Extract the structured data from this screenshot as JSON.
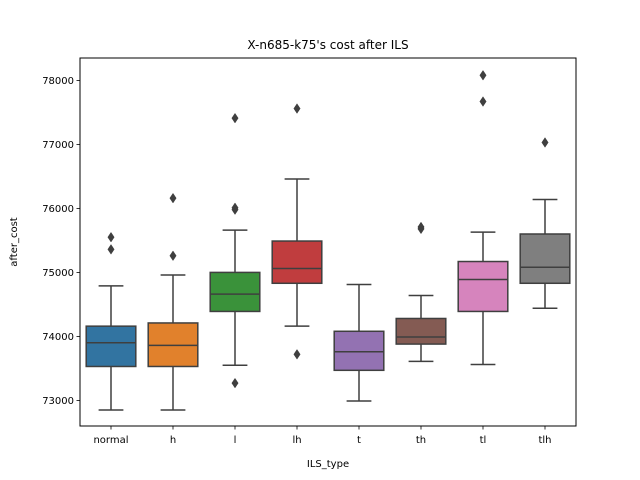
{
  "chart_data": {
    "type": "box",
    "title": "X-n685-k75's cost after ILS",
    "xlabel": "ILS_type",
    "ylabel": "after_cost",
    "categories": [
      "normal",
      "h",
      "l",
      "lh",
      "t",
      "th",
      "tl",
      "tlh"
    ],
    "ylim": [
      72600,
      78350
    ],
    "yticks": [
      73000,
      74000,
      75000,
      76000,
      77000,
      78000
    ],
    "ytick_labels": [
      "73000",
      "74000",
      "75000",
      "76000",
      "77000",
      "78000"
    ],
    "grid": false,
    "colors": {
      "normal": "#3274a1",
      "h": "#e1812c",
      "l": "#3a923a",
      "lh": "#c03d3e",
      "t": "#9372b2",
      "th": "#845b53",
      "tl": "#d684bd",
      "tlh": "#7f7f7f",
      "line": "#3f3f3f"
    },
    "boxes": [
      {
        "category": "normal",
        "whisker_low": 72850,
        "q1": 73530,
        "median": 73900,
        "q3": 74160,
        "whisker_high": 74790,
        "outliers": [
          75360,
          75550
        ]
      },
      {
        "category": "h",
        "whisker_low": 72850,
        "q1": 73530,
        "median": 73860,
        "q3": 74210,
        "whisker_high": 74960,
        "outliers": [
          75260,
          76160
        ]
      },
      {
        "category": "l",
        "whisker_low": 73550,
        "q1": 74390,
        "median": 74660,
        "q3": 75000,
        "whisker_high": 75660,
        "outliers": [
          73270,
          75980,
          76010,
          77410
        ]
      },
      {
        "category": "lh",
        "whisker_low": 74160,
        "q1": 74830,
        "median": 75060,
        "q3": 75490,
        "whisker_high": 76460,
        "outliers": [
          73720,
          77560
        ]
      },
      {
        "category": "t",
        "whisker_low": 72990,
        "q1": 73470,
        "median": 73760,
        "q3": 74080,
        "whisker_high": 74810,
        "outliers": []
      },
      {
        "category": "th",
        "whisker_low": 73610,
        "q1": 73880,
        "median": 73990,
        "q3": 74280,
        "whisker_high": 74640,
        "outliers": [
          75680,
          75710
        ]
      },
      {
        "category": "tl",
        "whisker_low": 73560,
        "q1": 74390,
        "median": 74890,
        "q3": 75170,
        "whisker_high": 75630,
        "outliers": [
          77670,
          78080
        ]
      },
      {
        "category": "tlh",
        "whisker_low": 74440,
        "q1": 74830,
        "median": 75080,
        "q3": 75600,
        "whisker_high": 76140,
        "outliers": [
          77030
        ]
      }
    ]
  }
}
